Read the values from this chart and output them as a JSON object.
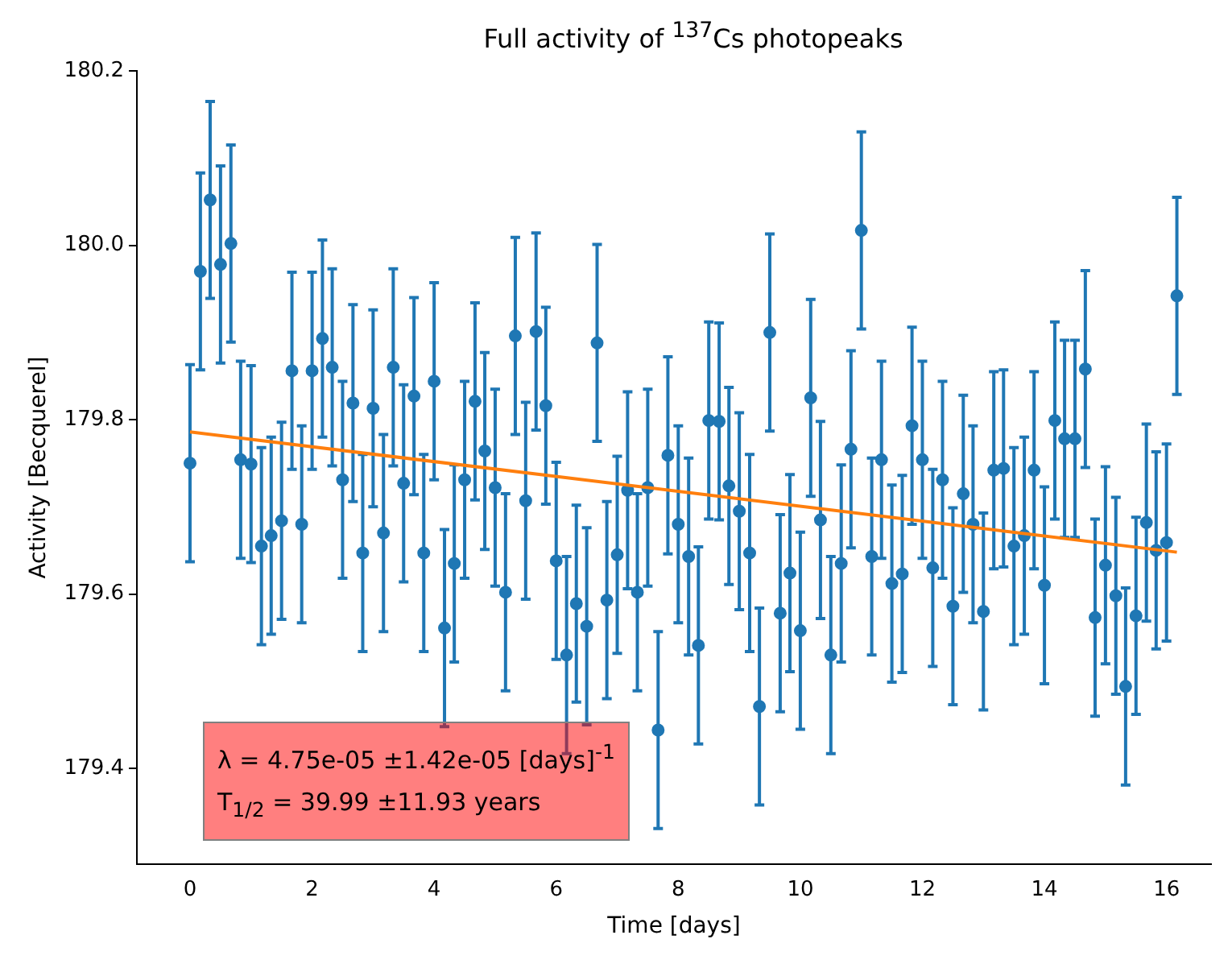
{
  "chart_data": {
    "type": "scatter",
    "title": "Full activity of $^{137}$Cs photopeaks",
    "xlabel": "Time [days]",
    "ylabel": "Activity [Becquerel]",
    "annotations": [
      "λ = 4.75e-05 ±1.42e-05 [days]$^{-1}$",
      "T$_{1/2}$ = 39.99 ±11.93 years"
    ],
    "xlim": [
      -0.87,
      16.73
    ],
    "ylim": [
      179.29,
      180.2
    ],
    "xticks": [
      0,
      2,
      4,
      6,
      8,
      10,
      12,
      14,
      16
    ],
    "yticks": [
      179.4,
      179.6,
      179.8,
      {
        "value": 180,
        "label": "180.0"
      },
      180.2
    ],
    "grid": false,
    "legend": false,
    "series": [
      {
        "type": "scatter",
        "marker": "circle",
        "color": "#1f77b4",
        "x": [
          0,
          0.17,
          0.33,
          0.5,
          0.67,
          0.83,
          1,
          1.17,
          1.33,
          1.5,
          1.67,
          1.83,
          2,
          2.17,
          2.33,
          2.5,
          2.67,
          2.83,
          3,
          3.17,
          3.33,
          3.5,
          3.67,
          3.83,
          4,
          4.17,
          4.33,
          4.5,
          4.67,
          4.83,
          5,
          5.17,
          5.33,
          5.5,
          5.67,
          5.83,
          6,
          6.17,
          6.33,
          6.5,
          6.67,
          6.83,
          7,
          7.17,
          7.33,
          7.5,
          7.67,
          7.83,
          8,
          8.17,
          8.33,
          8.5,
          8.67,
          8.83,
          9,
          9.17,
          9.33,
          9.5,
          9.67,
          9.83,
          10,
          10.17,
          10.33,
          10.5,
          10.67,
          10.83,
          11,
          11.17,
          11.33,
          11.5,
          11.67,
          11.83,
          12,
          12.17,
          12.33,
          12.5,
          12.67,
          12.83,
          13,
          13.17,
          13.33,
          13.5,
          13.67,
          13.83,
          14,
          14.17,
          14.33,
          14.5,
          14.67,
          14.83,
          15,
          15.17,
          15.33,
          15.5,
          15.67,
          15.83,
          16,
          16.17
        ],
        "values": [
          179.75,
          179.97,
          180.052,
          179.978,
          180.002,
          179.754,
          179.749,
          179.655,
          179.667,
          179.684,
          179.856,
          179.68,
          179.856,
          179.893,
          179.86,
          179.731,
          179.819,
          179.647,
          179.813,
          179.67,
          179.86,
          179.727,
          179.827,
          179.647,
          179.844,
          179.561,
          179.635,
          179.731,
          179.821,
          179.764,
          179.722,
          179.602,
          179.896,
          179.707,
          179.901,
          179.816,
          179.638,
          179.53,
          179.589,
          179.563,
          179.888,
          179.593,
          179.645,
          179.719,
          179.602,
          179.722,
          179.444,
          179.759,
          179.68,
          179.643,
          179.541,
          179.799,
          179.798,
          179.724,
          179.695,
          179.647,
          179.471,
          179.9,
          179.578,
          179.624,
          179.558,
          179.825,
          179.685,
          179.53,
          179.635,
          179.766,
          180.017,
          179.643,
          179.754,
          179.612,
          179.623,
          179.793,
          179.754,
          179.63,
          179.731,
          179.586,
          179.715,
          179.68,
          179.58,
          179.742,
          179.744,
          179.655,
          179.667,
          179.742,
          179.61,
          179.799,
          179.778,
          179.778,
          179.858,
          179.573,
          179.633,
          179.598,
          179.494,
          179.575,
          179.682,
          179.65,
          179.659,
          179.942
        ],
        "errors": [
          0.113,
          0.113,
          0.113,
          0.113,
          0.113,
          0.113,
          0.113,
          0.113,
          0.113,
          0.113,
          0.113,
          0.113,
          0.113,
          0.113,
          0.113,
          0.113,
          0.113,
          0.113,
          0.113,
          0.113,
          0.113,
          0.113,
          0.113,
          0.113,
          0.113,
          0.113,
          0.113,
          0.113,
          0.113,
          0.113,
          0.113,
          0.113,
          0.113,
          0.113,
          0.113,
          0.113,
          0.113,
          0.113,
          0.113,
          0.113,
          0.113,
          0.113,
          0.113,
          0.113,
          0.113,
          0.113,
          0.113,
          0.113,
          0.113,
          0.113,
          0.113,
          0.113,
          0.113,
          0.113,
          0.113,
          0.113,
          0.113,
          0.113,
          0.113,
          0.113,
          0.113,
          0.113,
          0.113,
          0.113,
          0.113,
          0.113,
          0.113,
          0.113,
          0.113,
          0.113,
          0.113,
          0.113,
          0.113,
          0.113,
          0.113,
          0.113,
          0.113,
          0.113,
          0.113,
          0.113,
          0.113,
          0.113,
          0.113,
          0.113,
          0.113,
          0.113,
          0.113,
          0.113,
          0.113,
          0.113,
          0.113,
          0.113,
          0.113,
          0.113,
          0.113,
          0.113,
          0.113,
          0.113
        ]
      },
      {
        "type": "line",
        "color": "#ff7f0e",
        "x": [
          0,
          16.17
        ],
        "values": [
          179.786,
          179.648
        ]
      }
    ]
  }
}
